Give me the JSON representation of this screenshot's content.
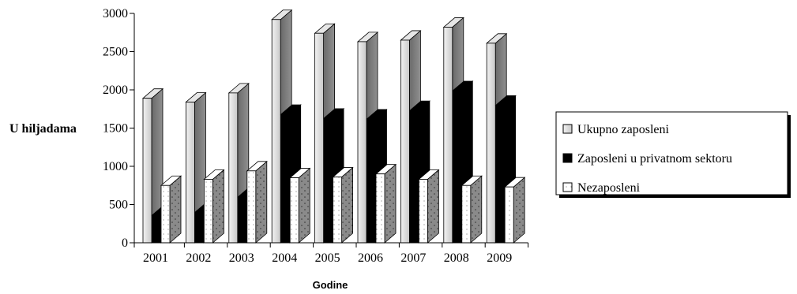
{
  "chart_data": {
    "type": "bar",
    "style": "3d-clustered-column",
    "categories": [
      "2001",
      "2002",
      "2003",
      "2004",
      "2005",
      "2006",
      "2007",
      "2008",
      "2009"
    ],
    "series": [
      {
        "name": "Ukupno zaposleni",
        "values": [
          1890,
          1840,
          1960,
          2920,
          2740,
          2630,
          2650,
          2820,
          2610
        ],
        "fill": "#d8d8d8",
        "side": "#8a8a8a"
      },
      {
        "name": "Zaposleni u privatnom sektoru",
        "values": [
          360,
          400,
          600,
          1680,
          1630,
          1620,
          1730,
          1990,
          1800
        ],
        "fill": "#000000",
        "side": "#000000"
      },
      {
        "name": "Nezaposleni",
        "values": [
          750,
          830,
          940,
          850,
          860,
          900,
          830,
          750,
          730
        ],
        "fill": "#ffffff",
        "side": "#808080"
      }
    ],
    "y_ticks": [
      "0",
      "500",
      "1000",
      "1500",
      "2000",
      "2500",
      "3000"
    ],
    "ylim": [
      0,
      3000
    ],
    "ylabel": "U hiljadama",
    "xlabel": "Godine",
    "legend_position": "right",
    "grid": false
  }
}
